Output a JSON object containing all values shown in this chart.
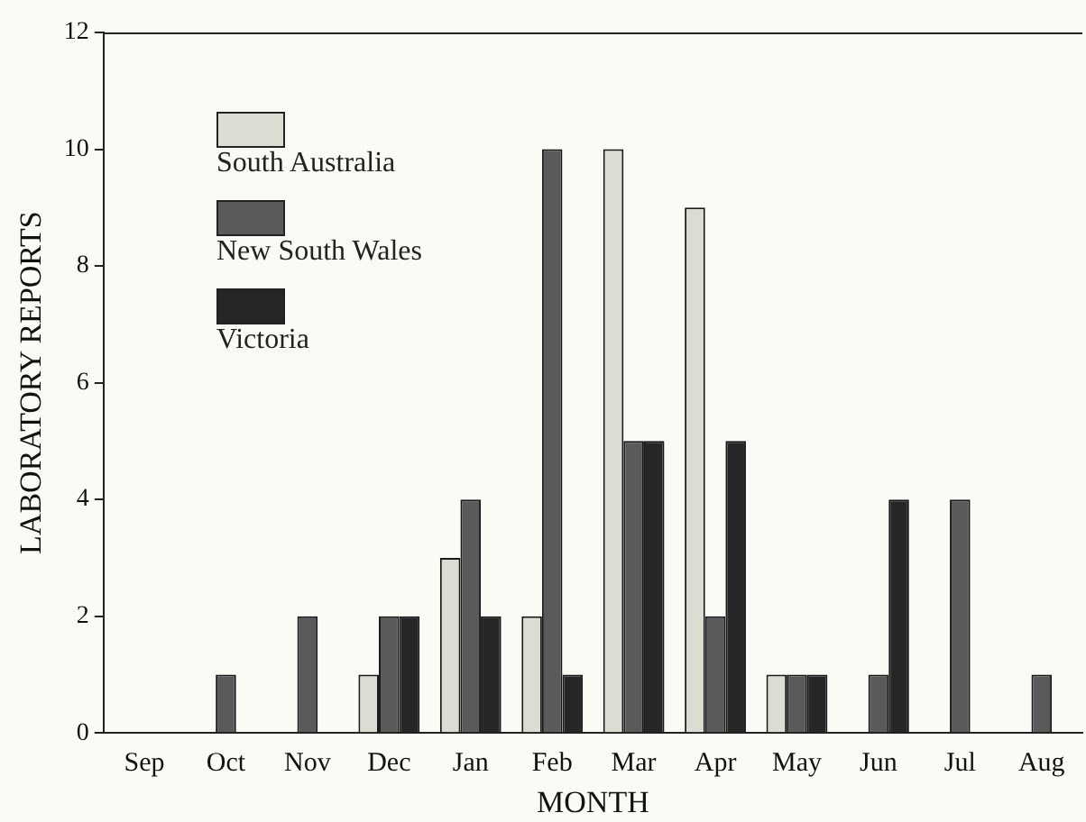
{
  "chart_data": {
    "type": "bar",
    "xlabel": "MONTH",
    "ylabel": "LABORATORY REPORTS",
    "categories": [
      "Sep",
      "Oct",
      "Nov",
      "Dec",
      "Jan",
      "Feb",
      "Mar",
      "Apr",
      "May",
      "Jun",
      "Jul",
      "Aug"
    ],
    "series": [
      {
        "name": "South Australia",
        "color": "#dcdcd2",
        "values": [
          0,
          0,
          0,
          1,
          3,
          2,
          10,
          9,
          1,
          0,
          0,
          0
        ]
      },
      {
        "name": "New South Wales",
        "color": "#5a5a5a",
        "values": [
          0,
          1,
          2,
          2,
          4,
          10,
          5,
          2,
          1,
          1,
          4,
          1
        ]
      },
      {
        "name": "Victoria",
        "color": "#262626",
        "values": [
          0,
          0,
          0,
          2,
          2,
          1,
          5,
          5,
          1,
          4,
          0,
          0
        ]
      }
    ],
    "ylim": [
      0,
      12
    ],
    "yticks": [
      0,
      2,
      4,
      6,
      8,
      10,
      12
    ],
    "grid": false,
    "legend": "top left"
  }
}
